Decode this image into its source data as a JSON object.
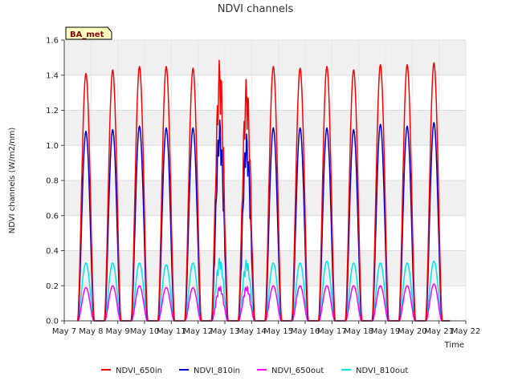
{
  "chart_data": {
    "type": "line",
    "title": "NDVI channels",
    "xlabel": "Time",
    "ylabel": "NDVI channels (W/m2/nm)",
    "ylim": [
      0,
      1.6
    ],
    "xlim": [
      7,
      22
    ],
    "yticks": [
      0.0,
      0.2,
      0.4,
      0.6,
      0.8,
      1.0,
      1.2,
      1.4,
      1.6
    ],
    "ytick_labels": [
      "0.0",
      "0.2",
      "0.4",
      "0.6",
      "0.8",
      "1.0",
      "1.2",
      "1.4",
      "1.6"
    ],
    "xticks": [
      7,
      8,
      9,
      10,
      11,
      12,
      13,
      14,
      15,
      16,
      17,
      18,
      19,
      20,
      21,
      22
    ],
    "xtick_labels": [
      "May 7",
      "May 8",
      "May 9",
      "May 10",
      "May 11",
      "May 12",
      "May 13",
      "May 14",
      "May 15",
      "May 16",
      "May 17",
      "May 18",
      "May 19",
      "May 20",
      "May 21",
      "May 22"
    ],
    "grid": true,
    "legend_position": "bottom",
    "annotation": "BA_met",
    "day_centers": [
      7.81,
      8.81,
      9.81,
      10.81,
      11.81,
      12.81,
      13.81,
      14.81,
      15.81,
      16.81,
      17.81,
      18.81,
      19.81,
      20.81
    ],
    "series": [
      {
        "name": "NDVI_650in",
        "color": "#ff0000",
        "daily_peaks": [
          1.41,
          1.43,
          1.45,
          1.45,
          1.44,
          1.5,
          1.39,
          1.45,
          1.44,
          1.45,
          1.43,
          1.46,
          1.46,
          1.47
        ]
      },
      {
        "name": "NDVI_810in",
        "color": "#0000cc",
        "daily_peaks": [
          1.08,
          1.09,
          1.11,
          1.1,
          1.1,
          1.15,
          1.07,
          1.1,
          1.1,
          1.1,
          1.09,
          1.12,
          1.11,
          1.13
        ]
      },
      {
        "name": "NDVI_650out",
        "color": "#ff00ff",
        "daily_peaks": [
          0.19,
          0.2,
          0.2,
          0.19,
          0.19,
          0.2,
          0.2,
          0.2,
          0.2,
          0.2,
          0.2,
          0.2,
          0.2,
          0.21
        ]
      },
      {
        "name": "NDVI_810out",
        "color": "#00e5ee",
        "daily_peaks": [
          0.33,
          0.33,
          0.33,
          0.32,
          0.33,
          0.36,
          0.35,
          0.33,
          0.33,
          0.34,
          0.33,
          0.33,
          0.33,
          0.34
        ]
      }
    ]
  }
}
